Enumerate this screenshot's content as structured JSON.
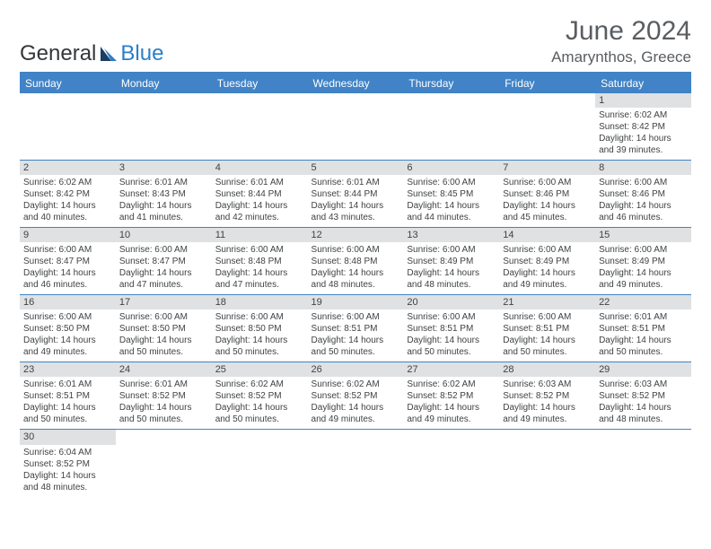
{
  "brand": {
    "part1": "General",
    "part2": "Blue"
  },
  "title": "June 2024",
  "location": "Amarynthos, Greece",
  "colors": {
    "header_bg": "#4183c6",
    "header_text": "#ffffff",
    "daybar_bg": "#dfe1e3",
    "text": "#404244",
    "title_text": "#5a5d60"
  },
  "weekdays": [
    "Sunday",
    "Monday",
    "Tuesday",
    "Wednesday",
    "Thursday",
    "Friday",
    "Saturday"
  ],
  "weeks": [
    [
      null,
      null,
      null,
      null,
      null,
      null,
      {
        "n": "1",
        "sr": "Sunrise: 6:02 AM",
        "ss": "Sunset: 8:42 PM",
        "d1": "Daylight: 14 hours",
        "d2": "and 39 minutes."
      }
    ],
    [
      {
        "n": "2",
        "sr": "Sunrise: 6:02 AM",
        "ss": "Sunset: 8:42 PM",
        "d1": "Daylight: 14 hours",
        "d2": "and 40 minutes."
      },
      {
        "n": "3",
        "sr": "Sunrise: 6:01 AM",
        "ss": "Sunset: 8:43 PM",
        "d1": "Daylight: 14 hours",
        "d2": "and 41 minutes."
      },
      {
        "n": "4",
        "sr": "Sunrise: 6:01 AM",
        "ss": "Sunset: 8:44 PM",
        "d1": "Daylight: 14 hours",
        "d2": "and 42 minutes."
      },
      {
        "n": "5",
        "sr": "Sunrise: 6:01 AM",
        "ss": "Sunset: 8:44 PM",
        "d1": "Daylight: 14 hours",
        "d2": "and 43 minutes."
      },
      {
        "n": "6",
        "sr": "Sunrise: 6:00 AM",
        "ss": "Sunset: 8:45 PM",
        "d1": "Daylight: 14 hours",
        "d2": "and 44 minutes."
      },
      {
        "n": "7",
        "sr": "Sunrise: 6:00 AM",
        "ss": "Sunset: 8:46 PM",
        "d1": "Daylight: 14 hours",
        "d2": "and 45 minutes."
      },
      {
        "n": "8",
        "sr": "Sunrise: 6:00 AM",
        "ss": "Sunset: 8:46 PM",
        "d1": "Daylight: 14 hours",
        "d2": "and 46 minutes."
      }
    ],
    [
      {
        "n": "9",
        "sr": "Sunrise: 6:00 AM",
        "ss": "Sunset: 8:47 PM",
        "d1": "Daylight: 14 hours",
        "d2": "and 46 minutes."
      },
      {
        "n": "10",
        "sr": "Sunrise: 6:00 AM",
        "ss": "Sunset: 8:47 PM",
        "d1": "Daylight: 14 hours",
        "d2": "and 47 minutes."
      },
      {
        "n": "11",
        "sr": "Sunrise: 6:00 AM",
        "ss": "Sunset: 8:48 PM",
        "d1": "Daylight: 14 hours",
        "d2": "and 47 minutes."
      },
      {
        "n": "12",
        "sr": "Sunrise: 6:00 AM",
        "ss": "Sunset: 8:48 PM",
        "d1": "Daylight: 14 hours",
        "d2": "and 48 minutes."
      },
      {
        "n": "13",
        "sr": "Sunrise: 6:00 AM",
        "ss": "Sunset: 8:49 PM",
        "d1": "Daylight: 14 hours",
        "d2": "and 48 minutes."
      },
      {
        "n": "14",
        "sr": "Sunrise: 6:00 AM",
        "ss": "Sunset: 8:49 PM",
        "d1": "Daylight: 14 hours",
        "d2": "and 49 minutes."
      },
      {
        "n": "15",
        "sr": "Sunrise: 6:00 AM",
        "ss": "Sunset: 8:49 PM",
        "d1": "Daylight: 14 hours",
        "d2": "and 49 minutes."
      }
    ],
    [
      {
        "n": "16",
        "sr": "Sunrise: 6:00 AM",
        "ss": "Sunset: 8:50 PM",
        "d1": "Daylight: 14 hours",
        "d2": "and 49 minutes."
      },
      {
        "n": "17",
        "sr": "Sunrise: 6:00 AM",
        "ss": "Sunset: 8:50 PM",
        "d1": "Daylight: 14 hours",
        "d2": "and 50 minutes."
      },
      {
        "n": "18",
        "sr": "Sunrise: 6:00 AM",
        "ss": "Sunset: 8:50 PM",
        "d1": "Daylight: 14 hours",
        "d2": "and 50 minutes."
      },
      {
        "n": "19",
        "sr": "Sunrise: 6:00 AM",
        "ss": "Sunset: 8:51 PM",
        "d1": "Daylight: 14 hours",
        "d2": "and 50 minutes."
      },
      {
        "n": "20",
        "sr": "Sunrise: 6:00 AM",
        "ss": "Sunset: 8:51 PM",
        "d1": "Daylight: 14 hours",
        "d2": "and 50 minutes."
      },
      {
        "n": "21",
        "sr": "Sunrise: 6:00 AM",
        "ss": "Sunset: 8:51 PM",
        "d1": "Daylight: 14 hours",
        "d2": "and 50 minutes."
      },
      {
        "n": "22",
        "sr": "Sunrise: 6:01 AM",
        "ss": "Sunset: 8:51 PM",
        "d1": "Daylight: 14 hours",
        "d2": "and 50 minutes."
      }
    ],
    [
      {
        "n": "23",
        "sr": "Sunrise: 6:01 AM",
        "ss": "Sunset: 8:51 PM",
        "d1": "Daylight: 14 hours",
        "d2": "and 50 minutes."
      },
      {
        "n": "24",
        "sr": "Sunrise: 6:01 AM",
        "ss": "Sunset: 8:52 PM",
        "d1": "Daylight: 14 hours",
        "d2": "and 50 minutes."
      },
      {
        "n": "25",
        "sr": "Sunrise: 6:02 AM",
        "ss": "Sunset: 8:52 PM",
        "d1": "Daylight: 14 hours",
        "d2": "and 50 minutes."
      },
      {
        "n": "26",
        "sr": "Sunrise: 6:02 AM",
        "ss": "Sunset: 8:52 PM",
        "d1": "Daylight: 14 hours",
        "d2": "and 49 minutes."
      },
      {
        "n": "27",
        "sr": "Sunrise: 6:02 AM",
        "ss": "Sunset: 8:52 PM",
        "d1": "Daylight: 14 hours",
        "d2": "and 49 minutes."
      },
      {
        "n": "28",
        "sr": "Sunrise: 6:03 AM",
        "ss": "Sunset: 8:52 PM",
        "d1": "Daylight: 14 hours",
        "d2": "and 49 minutes."
      },
      {
        "n": "29",
        "sr": "Sunrise: 6:03 AM",
        "ss": "Sunset: 8:52 PM",
        "d1": "Daylight: 14 hours",
        "d2": "and 48 minutes."
      }
    ],
    [
      {
        "n": "30",
        "sr": "Sunrise: 6:04 AM",
        "ss": "Sunset: 8:52 PM",
        "d1": "Daylight: 14 hours",
        "d2": "and 48 minutes."
      },
      null,
      null,
      null,
      null,
      null,
      null
    ]
  ]
}
